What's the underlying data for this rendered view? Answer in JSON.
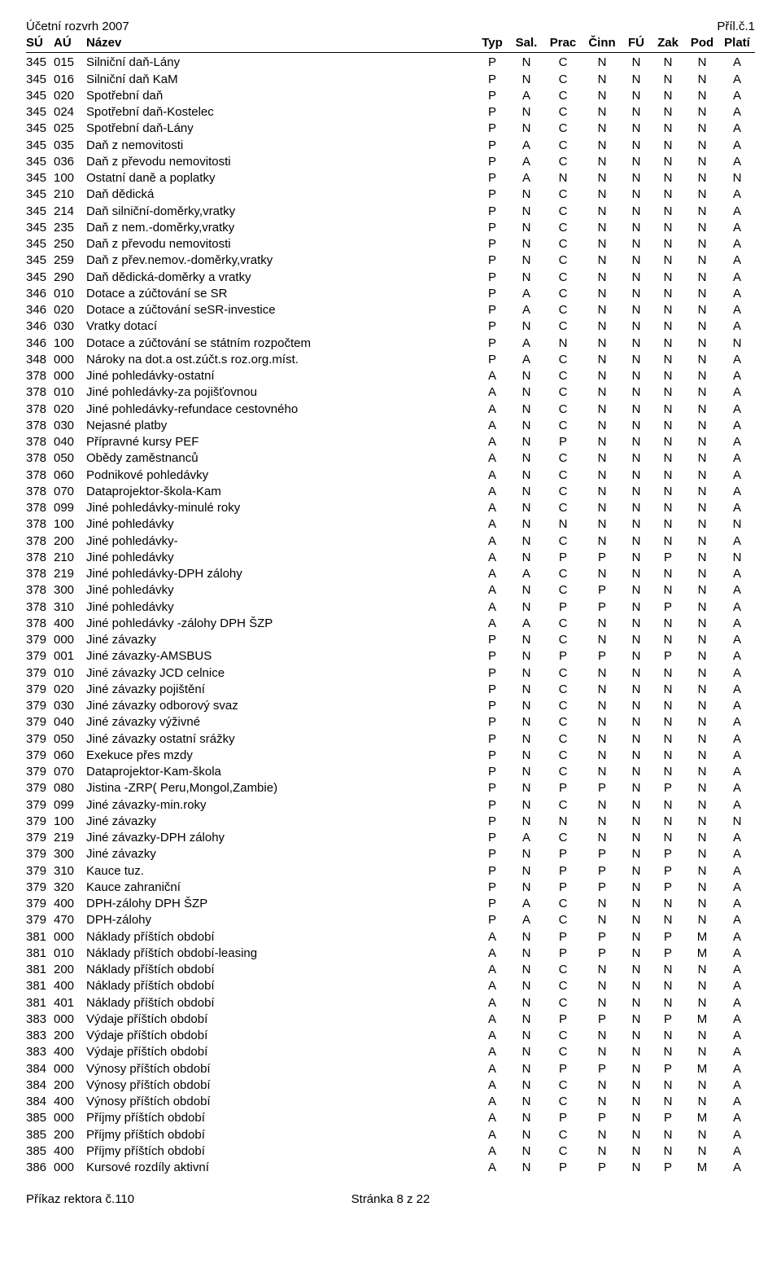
{
  "header": {
    "title_left": "Účetní rozvrh 2007",
    "title_right": "Příl.č.1"
  },
  "columns": {
    "su": "SÚ",
    "au": "AÚ",
    "name": "Název",
    "typ": "Typ",
    "sal": "Sal.",
    "prac": "Prac",
    "cinn": "Činn",
    "fu": "FÚ",
    "zak": "Zak",
    "pod": "Pod",
    "plati": "Platí"
  },
  "rows": [
    {
      "su": "345",
      "au": "015",
      "name": "Silniční daň-Lány",
      "typ": "P",
      "sal": "N",
      "prac": "C",
      "cinn": "N",
      "fu": "N",
      "zak": "N",
      "pod": "N",
      "plati": "A"
    },
    {
      "su": "345",
      "au": "016",
      "name": "Silniční daň KaM",
      "typ": "P",
      "sal": "N",
      "prac": "C",
      "cinn": "N",
      "fu": "N",
      "zak": "N",
      "pod": "N",
      "plati": "A"
    },
    {
      "su": "345",
      "au": "020",
      "name": "Spotřební daň",
      "typ": "P",
      "sal": "A",
      "prac": "C",
      "cinn": "N",
      "fu": "N",
      "zak": "N",
      "pod": "N",
      "plati": "A"
    },
    {
      "su": "345",
      "au": "024",
      "name": "Spotřební daň-Kostelec",
      "typ": "P",
      "sal": "N",
      "prac": "C",
      "cinn": "N",
      "fu": "N",
      "zak": "N",
      "pod": "N",
      "plati": "A"
    },
    {
      "su": "345",
      "au": "025",
      "name": "Spotřební daň-Lány",
      "typ": "P",
      "sal": "N",
      "prac": "C",
      "cinn": "N",
      "fu": "N",
      "zak": "N",
      "pod": "N",
      "plati": "A"
    },
    {
      "su": "345",
      "au": "035",
      "name": "Daň z nemovitosti",
      "typ": "P",
      "sal": "A",
      "prac": "C",
      "cinn": "N",
      "fu": "N",
      "zak": "N",
      "pod": "N",
      "plati": "A"
    },
    {
      "su": "345",
      "au": "036",
      "name": "Daň z převodu  nemovitosti",
      "typ": "P",
      "sal": "A",
      "prac": "C",
      "cinn": "N",
      "fu": "N",
      "zak": "N",
      "pod": "N",
      "plati": "A"
    },
    {
      "su": "345",
      "au": "100",
      "name": "Ostatní daně a poplatky",
      "typ": "P",
      "sal": "A",
      "prac": "N",
      "cinn": "N",
      "fu": "N",
      "zak": "N",
      "pod": "N",
      "plati": "N"
    },
    {
      "su": "345",
      "au": "210",
      "name": "Daň dědická",
      "typ": "P",
      "sal": "N",
      "prac": "C",
      "cinn": "N",
      "fu": "N",
      "zak": "N",
      "pod": "N",
      "plati": "A"
    },
    {
      "su": "345",
      "au": "214",
      "name": "Daň silniční-doměrky,vratky",
      "typ": "P",
      "sal": "N",
      "prac": "C",
      "cinn": "N",
      "fu": "N",
      "zak": "N",
      "pod": "N",
      "plati": "A"
    },
    {
      "su": "345",
      "au": "235",
      "name": "Daň z nem.-doměrky,vratky",
      "typ": "P",
      "sal": "N",
      "prac": "C",
      "cinn": "N",
      "fu": "N",
      "zak": "N",
      "pod": "N",
      "plati": "A"
    },
    {
      "su": "345",
      "au": "250",
      "name": "Daň z převodu nemovitosti",
      "typ": "P",
      "sal": "N",
      "prac": "C",
      "cinn": "N",
      "fu": "N",
      "zak": "N",
      "pod": "N",
      "plati": "A"
    },
    {
      "su": "345",
      "au": "259",
      "name": "Daň z přev.nemov.-doměrky,vratky",
      "typ": "P",
      "sal": "N",
      "prac": "C",
      "cinn": "N",
      "fu": "N",
      "zak": "N",
      "pod": "N",
      "plati": "A"
    },
    {
      "su": "345",
      "au": "290",
      "name": "Daň dědická-doměrky a vratky",
      "typ": "P",
      "sal": "N",
      "prac": "C",
      "cinn": "N",
      "fu": "N",
      "zak": "N",
      "pod": "N",
      "plati": "A"
    },
    {
      "su": "346",
      "au": "010",
      "name": "Dotace a zúčtování se SR",
      "typ": "P",
      "sal": "A",
      "prac": "C",
      "cinn": "N",
      "fu": "N",
      "zak": "N",
      "pod": "N",
      "plati": "A"
    },
    {
      "su": "346",
      "au": "020",
      "name": "Dotace a zúčtování seSR-investice",
      "typ": "P",
      "sal": "A",
      "prac": "C",
      "cinn": "N",
      "fu": "N",
      "zak": "N",
      "pod": "N",
      "plati": "A"
    },
    {
      "su": "346",
      "au": "030",
      "name": "Vratky dotací",
      "typ": "P",
      "sal": "N",
      "prac": "C",
      "cinn": "N",
      "fu": "N",
      "zak": "N",
      "pod": "N",
      "plati": "A"
    },
    {
      "su": "346",
      "au": "100",
      "name": "Dotace a zúčtování se státním rozpočtem",
      "typ": "P",
      "sal": "A",
      "prac": "N",
      "cinn": "N",
      "fu": "N",
      "zak": "N",
      "pod": "N",
      "plati": "N"
    },
    {
      "su": "348",
      "au": "000",
      "name": "Nároky na dot.a ost.zúčt.s roz.org.míst.",
      "typ": "P",
      "sal": "A",
      "prac": "C",
      "cinn": "N",
      "fu": "N",
      "zak": "N",
      "pod": "N",
      "plati": "A"
    },
    {
      "su": "378",
      "au": "000",
      "name": "Jiné pohledávky-ostatní",
      "typ": "A",
      "sal": "N",
      "prac": "C",
      "cinn": "N",
      "fu": "N",
      "zak": "N",
      "pod": "N",
      "plati": "A"
    },
    {
      "su": "378",
      "au": "010",
      "name": "Jiné pohledávky-za pojišťovnou",
      "typ": "A",
      "sal": "N",
      "prac": "C",
      "cinn": "N",
      "fu": "N",
      "zak": "N",
      "pod": "N",
      "plati": "A"
    },
    {
      "su": "378",
      "au": "020",
      "name": "Jiné pohledávky-refundace cestovného",
      "typ": "A",
      "sal": "N",
      "prac": "C",
      "cinn": "N",
      "fu": "N",
      "zak": "N",
      "pod": "N",
      "plati": "A"
    },
    {
      "su": "378",
      "au": "030",
      "name": "Nejasné platby",
      "typ": "A",
      "sal": "N",
      "prac": "C",
      "cinn": "N",
      "fu": "N",
      "zak": "N",
      "pod": "N",
      "plati": "A"
    },
    {
      "su": "378",
      "au": "040",
      "name": "Přípravné kursy PEF",
      "typ": "A",
      "sal": "N",
      "prac": "P",
      "cinn": "N",
      "fu": "N",
      "zak": "N",
      "pod": "N",
      "plati": "A"
    },
    {
      "su": "378",
      "au": "050",
      "name": "Obědy zaměstnanců",
      "typ": "A",
      "sal": "N",
      "prac": "C",
      "cinn": "N",
      "fu": "N",
      "zak": "N",
      "pod": "N",
      "plati": "A"
    },
    {
      "su": "378",
      "au": "060",
      "name": "Podnikové pohledávky",
      "typ": "A",
      "sal": "N",
      "prac": "C",
      "cinn": "N",
      "fu": "N",
      "zak": "N",
      "pod": "N",
      "plati": "A"
    },
    {
      "su": "378",
      "au": "070",
      "name": "Dataprojektor-škola-Kam",
      "typ": "A",
      "sal": "N",
      "prac": "C",
      "cinn": "N",
      "fu": "N",
      "zak": "N",
      "pod": "N",
      "plati": "A"
    },
    {
      "su": "378",
      "au": "099",
      "name": "Jiné pohledávky-minulé roky",
      "typ": "A",
      "sal": "N",
      "prac": "C",
      "cinn": "N",
      "fu": "N",
      "zak": "N",
      "pod": "N",
      "plati": "A"
    },
    {
      "su": "378",
      "au": "100",
      "name": "Jiné pohledávky",
      "typ": "A",
      "sal": "N",
      "prac": "N",
      "cinn": "N",
      "fu": "N",
      "zak": "N",
      "pod": "N",
      "plati": "N"
    },
    {
      "su": "378",
      "au": "200",
      "name": "Jiné pohledávky-",
      "typ": "A",
      "sal": "N",
      "prac": "C",
      "cinn": "N",
      "fu": "N",
      "zak": "N",
      "pod": "N",
      "plati": "A"
    },
    {
      "su": "378",
      "au": "210",
      "name": "Jiné pohledávky",
      "typ": "A",
      "sal": "N",
      "prac": "P",
      "cinn": "P",
      "fu": "N",
      "zak": "P",
      "pod": "N",
      "plati": "N"
    },
    {
      "su": "378",
      "au": "219",
      "name": "Jiné pohledávky-DPH zálohy",
      "typ": "A",
      "sal": "A",
      "prac": "C",
      "cinn": "N",
      "fu": "N",
      "zak": "N",
      "pod": "N",
      "plati": "A"
    },
    {
      "su": "378",
      "au": "300",
      "name": "Jiné pohledávky",
      "typ": "A",
      "sal": "N",
      "prac": "C",
      "cinn": "P",
      "fu": "N",
      "zak": "N",
      "pod": "N",
      "plati": "A"
    },
    {
      "su": "378",
      "au": "310",
      "name": "Jiné pohledávky",
      "typ": "A",
      "sal": "N",
      "prac": "P",
      "cinn": "P",
      "fu": "N",
      "zak": "P",
      "pod": "N",
      "plati": "A"
    },
    {
      "su": "378",
      "au": "400",
      "name": "Jiné pohledávky -zálohy DPH ŠZP",
      "typ": "A",
      "sal": "A",
      "prac": "C",
      "cinn": "N",
      "fu": "N",
      "zak": "N",
      "pod": "N",
      "plati": "A"
    },
    {
      "su": "379",
      "au": "000",
      "name": "Jiné závazky",
      "typ": "P",
      "sal": "N",
      "prac": "C",
      "cinn": "N",
      "fu": "N",
      "zak": "N",
      "pod": "N",
      "plati": "A"
    },
    {
      "su": "379",
      "au": "001",
      "name": "Jiné závazky-AMSBUS",
      "typ": "P",
      "sal": "N",
      "prac": "P",
      "cinn": "P",
      "fu": "N",
      "zak": "P",
      "pod": "N",
      "plati": "A"
    },
    {
      "su": "379",
      "au": "010",
      "name": "Jiné závazky JCD celnice",
      "typ": "P",
      "sal": "N",
      "prac": "C",
      "cinn": "N",
      "fu": "N",
      "zak": "N",
      "pod": "N",
      "plati": "A"
    },
    {
      "su": "379",
      "au": "020",
      "name": "Jiné závazky pojištění",
      "typ": "P",
      "sal": "N",
      "prac": "C",
      "cinn": "N",
      "fu": "N",
      "zak": "N",
      "pod": "N",
      "plati": "A"
    },
    {
      "su": "379",
      "au": "030",
      "name": "Jiné závazky odborový svaz",
      "typ": "P",
      "sal": "N",
      "prac": "C",
      "cinn": "N",
      "fu": "N",
      "zak": "N",
      "pod": "N",
      "plati": "A"
    },
    {
      "su": "379",
      "au": "040",
      "name": "Jiné závazky výživné",
      "typ": "P",
      "sal": "N",
      "prac": "C",
      "cinn": "N",
      "fu": "N",
      "zak": "N",
      "pod": "N",
      "plati": "A"
    },
    {
      "su": "379",
      "au": "050",
      "name": "Jiné závazky ostatní srážky",
      "typ": "P",
      "sal": "N",
      "prac": "C",
      "cinn": "N",
      "fu": "N",
      "zak": "N",
      "pod": "N",
      "plati": "A"
    },
    {
      "su": "379",
      "au": "060",
      "name": "Exekuce přes mzdy",
      "typ": "P",
      "sal": "N",
      "prac": "C",
      "cinn": "N",
      "fu": "N",
      "zak": "N",
      "pod": "N",
      "plati": "A"
    },
    {
      "su": "379",
      "au": "070",
      "name": "Dataprojektor-Kam-škola",
      "typ": "P",
      "sal": "N",
      "prac": "C",
      "cinn": "N",
      "fu": "N",
      "zak": "N",
      "pod": "N",
      "plati": "A"
    },
    {
      "su": "379",
      "au": "080",
      "name": "Jistina -ZRP( Peru,Mongol,Zambie)",
      "typ": "P",
      "sal": "N",
      "prac": "P",
      "cinn": "P",
      "fu": "N",
      "zak": "P",
      "pod": "N",
      "plati": "A"
    },
    {
      "su": "379",
      "au": "099",
      "name": "Jiné závazky-min.roky",
      "typ": "P",
      "sal": "N",
      "prac": "C",
      "cinn": "N",
      "fu": "N",
      "zak": "N",
      "pod": "N",
      "plati": "A"
    },
    {
      "su": "379",
      "au": "100",
      "name": "Jiné závazky",
      "typ": "P",
      "sal": "N",
      "prac": "N",
      "cinn": "N",
      "fu": "N",
      "zak": "N",
      "pod": "N",
      "plati": "N"
    },
    {
      "su": "379",
      "au": "219",
      "name": "Jiné závazky-DPH zálohy",
      "typ": "P",
      "sal": "A",
      "prac": "C",
      "cinn": "N",
      "fu": "N",
      "zak": "N",
      "pod": "N",
      "plati": "A"
    },
    {
      "su": "379",
      "au": "300",
      "name": "Jiné závazky",
      "typ": "P",
      "sal": "N",
      "prac": "P",
      "cinn": "P",
      "fu": "N",
      "zak": "P",
      "pod": "N",
      "plati": "A"
    },
    {
      "su": "379",
      "au": "310",
      "name": "Kauce tuz.",
      "typ": "P",
      "sal": "N",
      "prac": "P",
      "cinn": "P",
      "fu": "N",
      "zak": "P",
      "pod": "N",
      "plati": "A"
    },
    {
      "su": "379",
      "au": "320",
      "name": "Kauce zahraniční",
      "typ": "P",
      "sal": "N",
      "prac": "P",
      "cinn": "P",
      "fu": "N",
      "zak": "P",
      "pod": "N",
      "plati": "A"
    },
    {
      "su": "379",
      "au": "400",
      "name": "DPH-zálohy DPH ŠZP",
      "typ": "P",
      "sal": "A",
      "prac": "C",
      "cinn": "N",
      "fu": "N",
      "zak": "N",
      "pod": "N",
      "plati": "A"
    },
    {
      "su": "379",
      "au": "470",
      "name": "DPH-zálohy",
      "typ": "P",
      "sal": "A",
      "prac": "C",
      "cinn": "N",
      "fu": "N",
      "zak": "N",
      "pod": "N",
      "plati": "A"
    },
    {
      "su": "381",
      "au": "000",
      "name": "Náklady příštích období",
      "typ": "A",
      "sal": "N",
      "prac": "P",
      "cinn": "P",
      "fu": "N",
      "zak": "P",
      "pod": "M",
      "plati": "A"
    },
    {
      "su": "381",
      "au": "010",
      "name": "Náklady příštích období-leasing",
      "typ": "A",
      "sal": "N",
      "prac": "P",
      "cinn": "P",
      "fu": "N",
      "zak": "P",
      "pod": "M",
      "plati": "A"
    },
    {
      "su": "381",
      "au": "200",
      "name": "Náklady příštích období",
      "typ": "A",
      "sal": "N",
      "prac": "C",
      "cinn": "N",
      "fu": "N",
      "zak": "N",
      "pod": "N",
      "plati": "A"
    },
    {
      "su": "381",
      "au": "400",
      "name": "Náklady příštích období",
      "typ": "A",
      "sal": "N",
      "prac": "C",
      "cinn": "N",
      "fu": "N",
      "zak": "N",
      "pod": "N",
      "plati": "A"
    },
    {
      "su": "381",
      "au": "401",
      "name": "Náklady příštích období",
      "typ": "A",
      "sal": "N",
      "prac": "C",
      "cinn": "N",
      "fu": "N",
      "zak": "N",
      "pod": "N",
      "plati": "A"
    },
    {
      "su": "383",
      "au": "000",
      "name": "Výdaje příštích období",
      "typ": "A",
      "sal": "N",
      "prac": "P",
      "cinn": "P",
      "fu": "N",
      "zak": "P",
      "pod": "M",
      "plati": "A"
    },
    {
      "su": "383",
      "au": "200",
      "name": "Výdaje příštích období",
      "typ": "A",
      "sal": "N",
      "prac": "C",
      "cinn": "N",
      "fu": "N",
      "zak": "N",
      "pod": "N",
      "plati": "A"
    },
    {
      "su": "383",
      "au": "400",
      "name": "Výdaje příštích období",
      "typ": "A",
      "sal": "N",
      "prac": "C",
      "cinn": "N",
      "fu": "N",
      "zak": "N",
      "pod": "N",
      "plati": "A"
    },
    {
      "su": "384",
      "au": "000",
      "name": "Výnosy příštích období",
      "typ": "A",
      "sal": "N",
      "prac": "P",
      "cinn": "P",
      "fu": "N",
      "zak": "P",
      "pod": "M",
      "plati": "A"
    },
    {
      "su": "384",
      "au": "200",
      "name": "Výnosy příštích období",
      "typ": "A",
      "sal": "N",
      "prac": "C",
      "cinn": "N",
      "fu": "N",
      "zak": "N",
      "pod": "N",
      "plati": "A"
    },
    {
      "su": "384",
      "au": "400",
      "name": "Výnosy příštích období",
      "typ": "A",
      "sal": "N",
      "prac": "C",
      "cinn": "N",
      "fu": "N",
      "zak": "N",
      "pod": "N",
      "plati": "A"
    },
    {
      "su": "385",
      "au": "000",
      "name": "Příjmy příštích období",
      "typ": "A",
      "sal": "N",
      "prac": "P",
      "cinn": "P",
      "fu": "N",
      "zak": "P",
      "pod": "M",
      "plati": "A"
    },
    {
      "su": "385",
      "au": "200",
      "name": "Příjmy příštích období",
      "typ": "A",
      "sal": "N",
      "prac": "C",
      "cinn": "N",
      "fu": "N",
      "zak": "N",
      "pod": "N",
      "plati": "A"
    },
    {
      "su": "385",
      "au": "400",
      "name": "Příjmy příštích období",
      "typ": "A",
      "sal": "N",
      "prac": "C",
      "cinn": "N",
      "fu": "N",
      "zak": "N",
      "pod": "N",
      "plati": "A"
    },
    {
      "su": "386",
      "au": "000",
      "name": "Kursové rozdíly aktivní",
      "typ": "A",
      "sal": "N",
      "prac": "P",
      "cinn": "P",
      "fu": "N",
      "zak": "P",
      "pod": "M",
      "plati": "A"
    }
  ],
  "footer": {
    "left": "Příkaz rektora č.110",
    "mid": "Stránka 8 z 22",
    "right": ""
  }
}
